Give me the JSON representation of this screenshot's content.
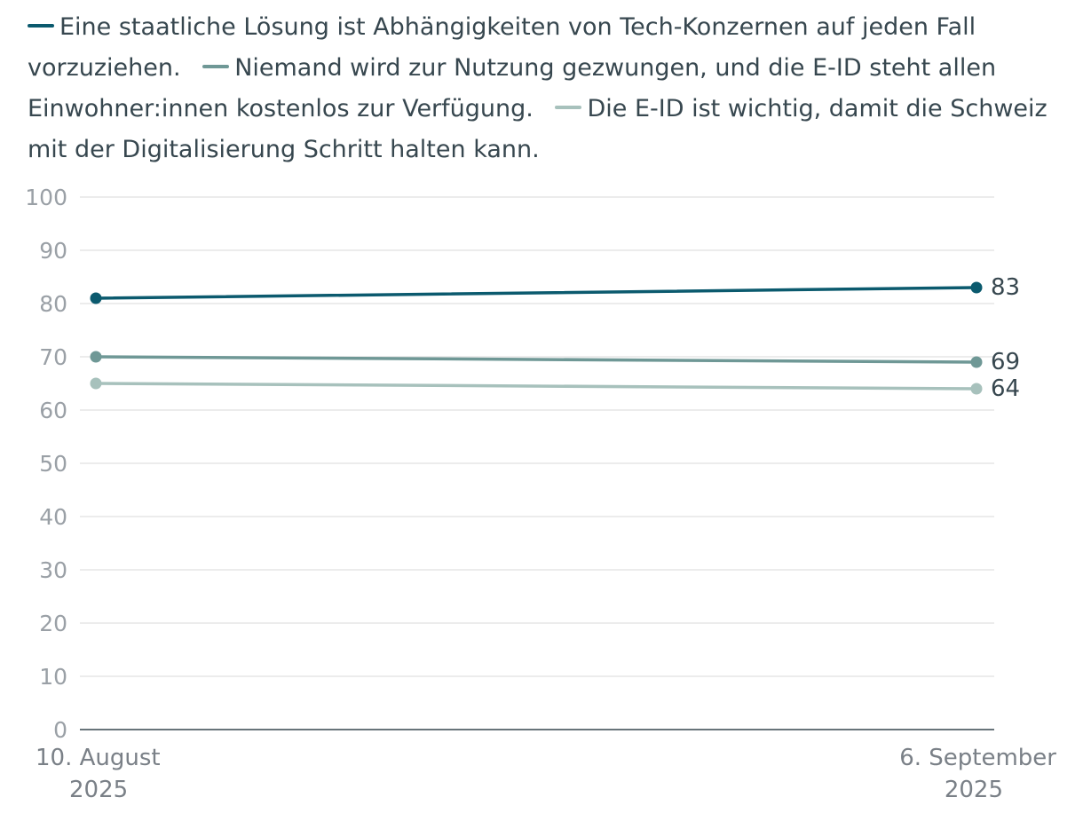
{
  "chart_data": {
    "type": "line",
    "x": [
      "10. August 2025",
      "6. September 2025"
    ],
    "x_labels": [
      [
        "10. August",
        "2025"
      ],
      [
        "6. September",
        "2025"
      ]
    ],
    "series": [
      {
        "name": "Eine staatliche Lösung ist Abhängigkeiten von Tech-Konzernen auf jeden Fall vorzuziehen.",
        "values": [
          81,
          83
        ],
        "color": "#0b5a6e",
        "end_label": "83"
      },
      {
        "name": "Niemand wird zur Nutzung gezwungen, und die E-ID steht allen Einwohner:innen kostenlos zur Verfügung.",
        "values": [
          70,
          69
        ],
        "color": "#6f9896",
        "end_label": "69"
      },
      {
        "name": "Die E-ID ist wichtig, damit die Schweiz mit der Digitalisierung Schritt halten kann.",
        "values": [
          65,
          64
        ],
        "color": "#a7c1bc",
        "end_label": "64"
      }
    ],
    "yticks": [
      "0",
      "10",
      "20",
      "30",
      "40",
      "50",
      "60",
      "70",
      "80",
      "90",
      "100"
    ],
    "ylim": [
      0,
      100
    ],
    "grid": true,
    "legend_position": "top"
  }
}
